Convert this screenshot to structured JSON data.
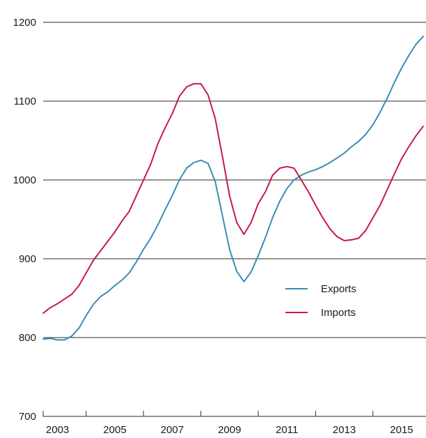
{
  "chart_data": {
    "type": "line",
    "title": "",
    "xlabel": "",
    "ylabel": "",
    "xlim": [
      2002.5,
      2015.85
    ],
    "ylim": [
      700,
      1200
    ],
    "yticks": [
      700,
      800,
      900,
      1000,
      1100,
      1200
    ],
    "xticks": [
      2003,
      2005,
      2007,
      2009,
      2011,
      2013,
      2015
    ],
    "x_tick_marks": [
      2004,
      2006,
      2008,
      2010,
      2012,
      2014
    ],
    "grid": "horizontal",
    "legend_position": "bottom-right",
    "series": [
      {
        "name": "Exports",
        "color": "#3a8db5",
        "x": [
          2002.5,
          2002.75,
          2003.0,
          2003.25,
          2003.5,
          2003.75,
          2004.0,
          2004.25,
          2004.5,
          2004.75,
          2005.0,
          2005.25,
          2005.5,
          2005.75,
          2006.0,
          2006.25,
          2006.5,
          2006.75,
          2007.0,
          2007.25,
          2007.5,
          2007.75,
          2008.0,
          2008.25,
          2008.5,
          2008.75,
          2009.0,
          2009.25,
          2009.5,
          2009.75,
          2010.0,
          2010.25,
          2010.5,
          2010.75,
          2011.0,
          2011.25,
          2011.5,
          2011.75,
          2012.0,
          2012.25,
          2012.5,
          2012.75,
          2013.0,
          2013.25,
          2013.5,
          2013.75,
          2014.0,
          2014.25,
          2014.5,
          2014.75,
          2015.0,
          2015.25,
          2015.5,
          2015.75
        ],
        "values": [
          798,
          799,
          797,
          797,
          802,
          812,
          828,
          842,
          852,
          858,
          866,
          873,
          882,
          896,
          912,
          926,
          943,
          962,
          980,
          1000,
          1015,
          1022,
          1025,
          1021,
          998,
          955,
          912,
          884,
          871,
          883,
          904,
          927,
          952,
          973,
          989,
          1000,
          1006,
          1010,
          1013,
          1017,
          1022,
          1028,
          1034,
          1042,
          1049,
          1058,
          1070,
          1086,
          1104,
          1124,
          1142,
          1158,
          1172,
          1182
        ]
      },
      {
        "name": "Imports",
        "color": "#c8174e",
        "x": [
          2002.5,
          2002.75,
          2003.0,
          2003.25,
          2003.5,
          2003.75,
          2004.0,
          2004.25,
          2004.5,
          2004.75,
          2005.0,
          2005.25,
          2005.5,
          2005.75,
          2006.0,
          2006.25,
          2006.5,
          2006.75,
          2007.0,
          2007.25,
          2007.5,
          2007.75,
          2008.0,
          2008.25,
          2008.5,
          2008.75,
          2009.0,
          2009.25,
          2009.5,
          2009.75,
          2010.0,
          2010.25,
          2010.5,
          2010.75,
          2011.0,
          2011.25,
          2011.5,
          2011.75,
          2012.0,
          2012.25,
          2012.5,
          2012.75,
          2013.0,
          2013.25,
          2013.5,
          2013.75,
          2014.0,
          2014.25,
          2014.5,
          2014.75,
          2015.0,
          2015.25,
          2015.5,
          2015.75
        ],
        "values": [
          831,
          838,
          843,
          849,
          855,
          866,
          882,
          898,
          910,
          922,
          934,
          948,
          960,
          980,
          1000,
          1020,
          1046,
          1066,
          1084,
          1106,
          1118,
          1122,
          1122,
          1108,
          1078,
          1030,
          980,
          946,
          931,
          946,
          970,
          985,
          1006,
          1015,
          1017,
          1015,
          1000,
          985,
          968,
          952,
          938,
          928,
          923,
          924,
          926,
          936,
          952,
          968,
          988,
          1008,
          1027,
          1042,
          1056,
          1068
        ]
      }
    ]
  }
}
